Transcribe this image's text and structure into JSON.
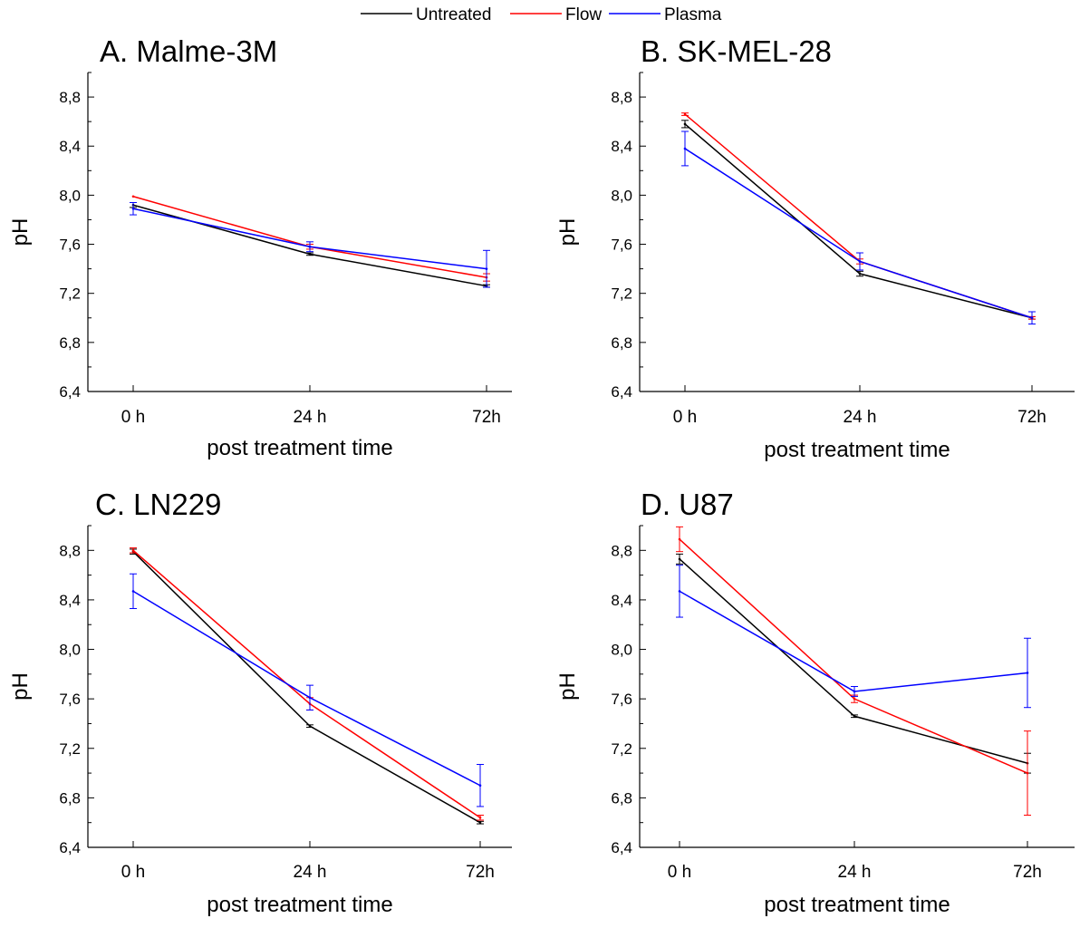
{
  "legend": {
    "placement": "top-center",
    "entries": [
      {
        "label": "Untreated",
        "color": "#000000"
      },
      {
        "label": "Flow",
        "color": "#ff0000"
      },
      {
        "label": "Plasma",
        "color": "#0000ff"
      }
    ]
  },
  "chart_data": [
    {
      "type": "line",
      "title": "A. Malme-3M",
      "xlabel": "post treatment time",
      "ylabel": "pH",
      "categories": [
        "0 h",
        "24 h",
        "72h"
      ],
      "ylim": [
        6.4,
        9.0
      ],
      "yticks": [
        "6,4",
        "6,8",
        "7,2",
        "7,6",
        "8,0",
        "8,4",
        "8,8"
      ],
      "series": [
        {
          "name": "Untreated",
          "color": "#000000",
          "values": [
            7.92,
            7.52,
            7.26
          ],
          "errors": [
            0.02,
            0.01,
            0.01
          ]
        },
        {
          "name": "Flow",
          "color": "#ff0000",
          "values": [
            7.99,
            7.58,
            7.33
          ],
          "errors": [
            0.0,
            0.02,
            0.03
          ]
        },
        {
          "name": "Plasma",
          "color": "#0000ff",
          "values": [
            7.89,
            7.58,
            7.4
          ],
          "errors": [
            0.05,
            0.04,
            0.15
          ]
        }
      ]
    },
    {
      "type": "line",
      "title": "B. SK-MEL-28",
      "xlabel": "post treatment time",
      "ylabel": "pH",
      "categories": [
        "0 h",
        "24 h",
        "72h"
      ],
      "ylim": [
        6.4,
        9.0
      ],
      "yticks": [
        "6,4",
        "6,8",
        "7,2",
        "7,6",
        "8,0",
        "8,4",
        "8,8"
      ],
      "series": [
        {
          "name": "Untreated",
          "color": "#000000",
          "values": [
            8.58,
            7.36,
            7.0
          ],
          "errors": [
            0.03,
            0.02,
            0.01
          ]
        },
        {
          "name": "Flow",
          "color": "#ff0000",
          "values": [
            8.66,
            7.46,
            7.0
          ],
          "errors": [
            0.01,
            0.02,
            0.01
          ]
        },
        {
          "name": "Plasma",
          "color": "#0000ff",
          "values": [
            8.38,
            7.46,
            7.0
          ],
          "errors": [
            0.14,
            0.07,
            0.05
          ]
        }
      ]
    },
    {
      "type": "line",
      "title": "C. LN229",
      "xlabel": "post treatment time",
      "ylabel": "pH",
      "categories": [
        "0 h",
        "24 h",
        "72h"
      ],
      "ylim": [
        6.4,
        9.0
      ],
      "yticks": [
        "6,4",
        "6,8",
        "7,2",
        "7,6",
        "8,0",
        "8,4",
        "8,8"
      ],
      "series": [
        {
          "name": "Untreated",
          "color": "#000000",
          "values": [
            8.79,
            7.38,
            6.6
          ],
          "errors": [
            0.02,
            0.01,
            0.01
          ]
        },
        {
          "name": "Flow",
          "color": "#ff0000",
          "values": [
            8.8,
            7.56,
            6.64
          ],
          "errors": [
            0.02,
            0.05,
            0.02
          ]
        },
        {
          "name": "Plasma",
          "color": "#0000ff",
          "values": [
            8.47,
            7.61,
            6.9
          ],
          "errors": [
            0.14,
            0.1,
            0.17
          ]
        }
      ]
    },
    {
      "type": "line",
      "title": "D. U87",
      "xlabel": "post treatment time",
      "ylabel": "pH",
      "categories": [
        "0 h",
        "24 h",
        "72h"
      ],
      "ylim": [
        6.4,
        9.0
      ],
      "yticks": [
        "6,4",
        "6,8",
        "7,2",
        "7,6",
        "8,0",
        "8,4",
        "8,8"
      ],
      "series": [
        {
          "name": "Untreated",
          "color": "#000000",
          "values": [
            8.73,
            7.46,
            7.08
          ],
          "errors": [
            0.04,
            0.01,
            0.08
          ]
        },
        {
          "name": "Flow",
          "color": "#ff0000",
          "values": [
            8.89,
            7.6,
            7.0
          ],
          "errors": [
            0.1,
            0.03,
            0.34
          ]
        },
        {
          "name": "Plasma",
          "color": "#0000ff",
          "values": [
            8.47,
            7.66,
            7.81
          ],
          "errors": [
            0.21,
            0.04,
            0.28
          ]
        }
      ]
    }
  ]
}
